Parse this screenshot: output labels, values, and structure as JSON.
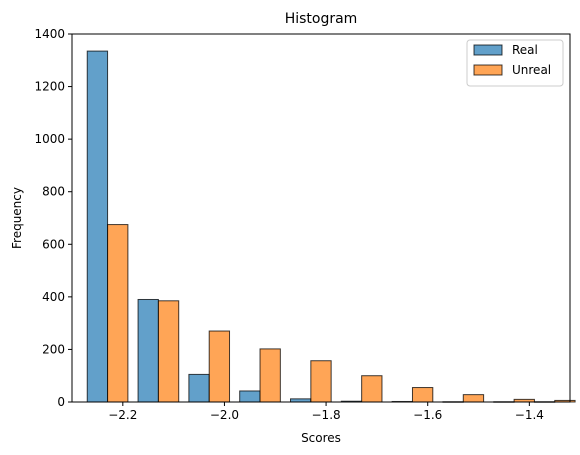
{
  "chart_data": {
    "type": "bar",
    "title": "Histogram",
    "xlabel": "Scores",
    "ylabel": "Frequency",
    "xlim": [
      -2.3,
      -1.32
    ],
    "ylim": [
      0,
      1400
    ],
    "xticks": [
      -2.2,
      -2.0,
      -1.8,
      -1.6,
      -1.4
    ],
    "xtick_labels": [
      "−2.2",
      "−2.0",
      "−1.8",
      "−1.6",
      "−1.4"
    ],
    "yticks": [
      0,
      200,
      400,
      600,
      800,
      1000,
      1200,
      1400
    ],
    "ytick_labels": [
      "0",
      "200",
      "400",
      "600",
      "800",
      "1000",
      "1200",
      "1400"
    ],
    "bin_edges": [
      -2.28,
      -2.18,
      -2.08,
      -1.98,
      -1.88,
      -1.78,
      -1.68,
      -1.58,
      -1.48,
      -1.38,
      -1.33
    ],
    "bin_centers": [
      -2.23,
      -2.13,
      -2.03,
      -1.93,
      -1.83,
      -1.73,
      -1.63,
      -1.53,
      -1.43,
      -1.35
    ],
    "bar_width": 0.04,
    "grid": false,
    "legend_position": "top-right",
    "series": [
      {
        "name": "Real",
        "color": "#1f77b4",
        "values": [
          1335,
          390,
          105,
          42,
          12,
          3,
          2,
          1,
          1,
          1
        ]
      },
      {
        "name": "Unreal",
        "color": "#ff7f0e",
        "values": [
          675,
          385,
          270,
          202,
          157,
          100,
          55,
          28,
          10,
          6
        ]
      }
    ]
  }
}
